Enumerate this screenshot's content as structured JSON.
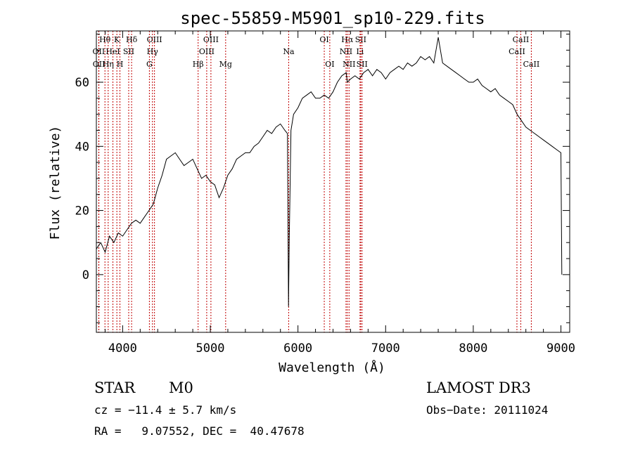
{
  "chart_data": {
    "type": "line",
    "title": "spec-55859-M5901_sp10-229.fits",
    "xlabel": "Wavelength (Å)",
    "ylabel": "Flux (relative)",
    "xlim": [
      3700,
      9100
    ],
    "ylim": [
      -18,
      76
    ],
    "x_ticks": [
      4000,
      5000,
      6000,
      7000,
      8000,
      9000
    ],
    "y_ticks": [
      0,
      20,
      40,
      60
    ],
    "spectrum": {
      "name": "flux",
      "x": [
        3700,
        3750,
        3800,
        3850,
        3900,
        3950,
        4000,
        4050,
        4100,
        4150,
        4200,
        4250,
        4300,
        4350,
        4400,
        4450,
        4500,
        4550,
        4600,
        4650,
        4700,
        4750,
        4800,
        4850,
        4900,
        4950,
        5000,
        5050,
        5100,
        5150,
        5200,
        5250,
        5300,
        5350,
        5400,
        5450,
        5500,
        5550,
        5600,
        5650,
        5700,
        5750,
        5800,
        5850,
        5880,
        5892,
        5900,
        5920,
        5950,
        6000,
        6050,
        6100,
        6150,
        6200,
        6250,
        6300,
        6350,
        6400,
        6450,
        6500,
        6550,
        6563,
        6600,
        6650,
        6700,
        6750,
        6800,
        6850,
        6900,
        6950,
        7000,
        7050,
        7100,
        7150,
        7200,
        7250,
        7300,
        7350,
        7400,
        7450,
        7500,
        7550,
        7600,
        7650,
        7700,
        7750,
        7800,
        7850,
        7900,
        7950,
        8000,
        8050,
        8100,
        8150,
        8200,
        8250,
        8300,
        8350,
        8400,
        8450,
        8500,
        8550,
        8600,
        8650,
        8700,
        8750,
        8800,
        8850,
        8900,
        8950,
        9000,
        9010
      ],
      "y": [
        8,
        10,
        7,
        12,
        10,
        13,
        12,
        14,
        16,
        17,
        16,
        18,
        20,
        22,
        27,
        31,
        36,
        37,
        38,
        36,
        34,
        35,
        36,
        33,
        30,
        31,
        29,
        28,
        24,
        27,
        31,
        33,
        36,
        37,
        38,
        38,
        40,
        41,
        43,
        45,
        44,
        46,
        47,
        45,
        44,
        -10,
        10,
        45,
        50,
        52,
        55,
        56,
        57,
        55,
        55,
        56,
        55,
        57,
        60,
        62,
        63,
        60,
        61,
        62,
        61,
        63,
        64,
        62,
        64,
        63,
        61,
        63,
        64,
        65,
        64,
        66,
        65,
        66,
        68,
        67,
        68,
        66,
        74,
        66,
        65,
        64,
        63,
        62,
        61,
        60,
        60,
        61,
        59,
        58,
        57,
        58,
        56,
        55,
        54,
        53,
        50,
        48,
        46,
        45,
        44,
        43,
        42,
        41,
        40,
        39,
        38,
        0
      ]
    },
    "line_ids": [
      {
        "label": "Hθ",
        "x": 3798,
        "row": 1
      },
      {
        "label": "OII",
        "x": 3727,
        "row": 2
      },
      {
        "label": "OII",
        "x": 3729,
        "row": 3
      },
      {
        "label": "K",
        "x": 3934,
        "row": 1
      },
      {
        "label": "HeI",
        "x": 3889,
        "row": 2
      },
      {
        "label": "Hη",
        "x": 3835,
        "row": 3
      },
      {
        "label": "Hδ",
        "x": 4102,
        "row": 1
      },
      {
        "label": "SII",
        "x": 4069,
        "row": 2
      },
      {
        "label": "H",
        "x": 3969,
        "row": 3
      },
      {
        "label": "OIII",
        "x": 4363,
        "row": 1
      },
      {
        "label": "Hγ",
        "x": 4340,
        "row": 2
      },
      {
        "label": "G",
        "x": 4305,
        "row": 3
      },
      {
        "label": "OIII",
        "x": 5007,
        "row": 1
      },
      {
        "label": "OIII",
        "x": 4959,
        "row": 2
      },
      {
        "label": "Hβ",
        "x": 4861,
        "row": 3
      },
      {
        "label": "Mg",
        "x": 5175,
        "row": 3
      },
      {
        "label": "Na",
        "x": 5894,
        "row": 2
      },
      {
        "label": "OI",
        "x": 6300,
        "row": 1
      },
      {
        "label": "OI",
        "x": 6363,
        "row": 3
      },
      {
        "label": "Hα",
        "x": 6563,
        "row": 1
      },
      {
        "label": "SII",
        "x": 6716,
        "row": 1
      },
      {
        "label": "NII",
        "x": 6548,
        "row": 2
      },
      {
        "label": "Li",
        "x": 6708,
        "row": 2
      },
      {
        "label": "NII",
        "x": 6583,
        "row": 3
      },
      {
        "label": "SII",
        "x": 6731,
        "row": 3
      },
      {
        "label": "CaII",
        "x": 8542,
        "row": 1
      },
      {
        "label": "CaII",
        "x": 8498,
        "row": 2
      },
      {
        "label": "CaII",
        "x": 8662,
        "row": 3
      }
    ]
  },
  "info": {
    "object_class": "STAR",
    "subclass": "M0",
    "survey": "LAMOST DR3",
    "cz": "cz = −11.4 ± 5.7 km/s",
    "obs_date": "Obs−Date: 20111024",
    "coords": "RA =   9.07552, DEC =  40.47678"
  },
  "colors": {
    "axes": "#000000",
    "spectrum": "#000000",
    "line_marker": "#c00000"
  }
}
